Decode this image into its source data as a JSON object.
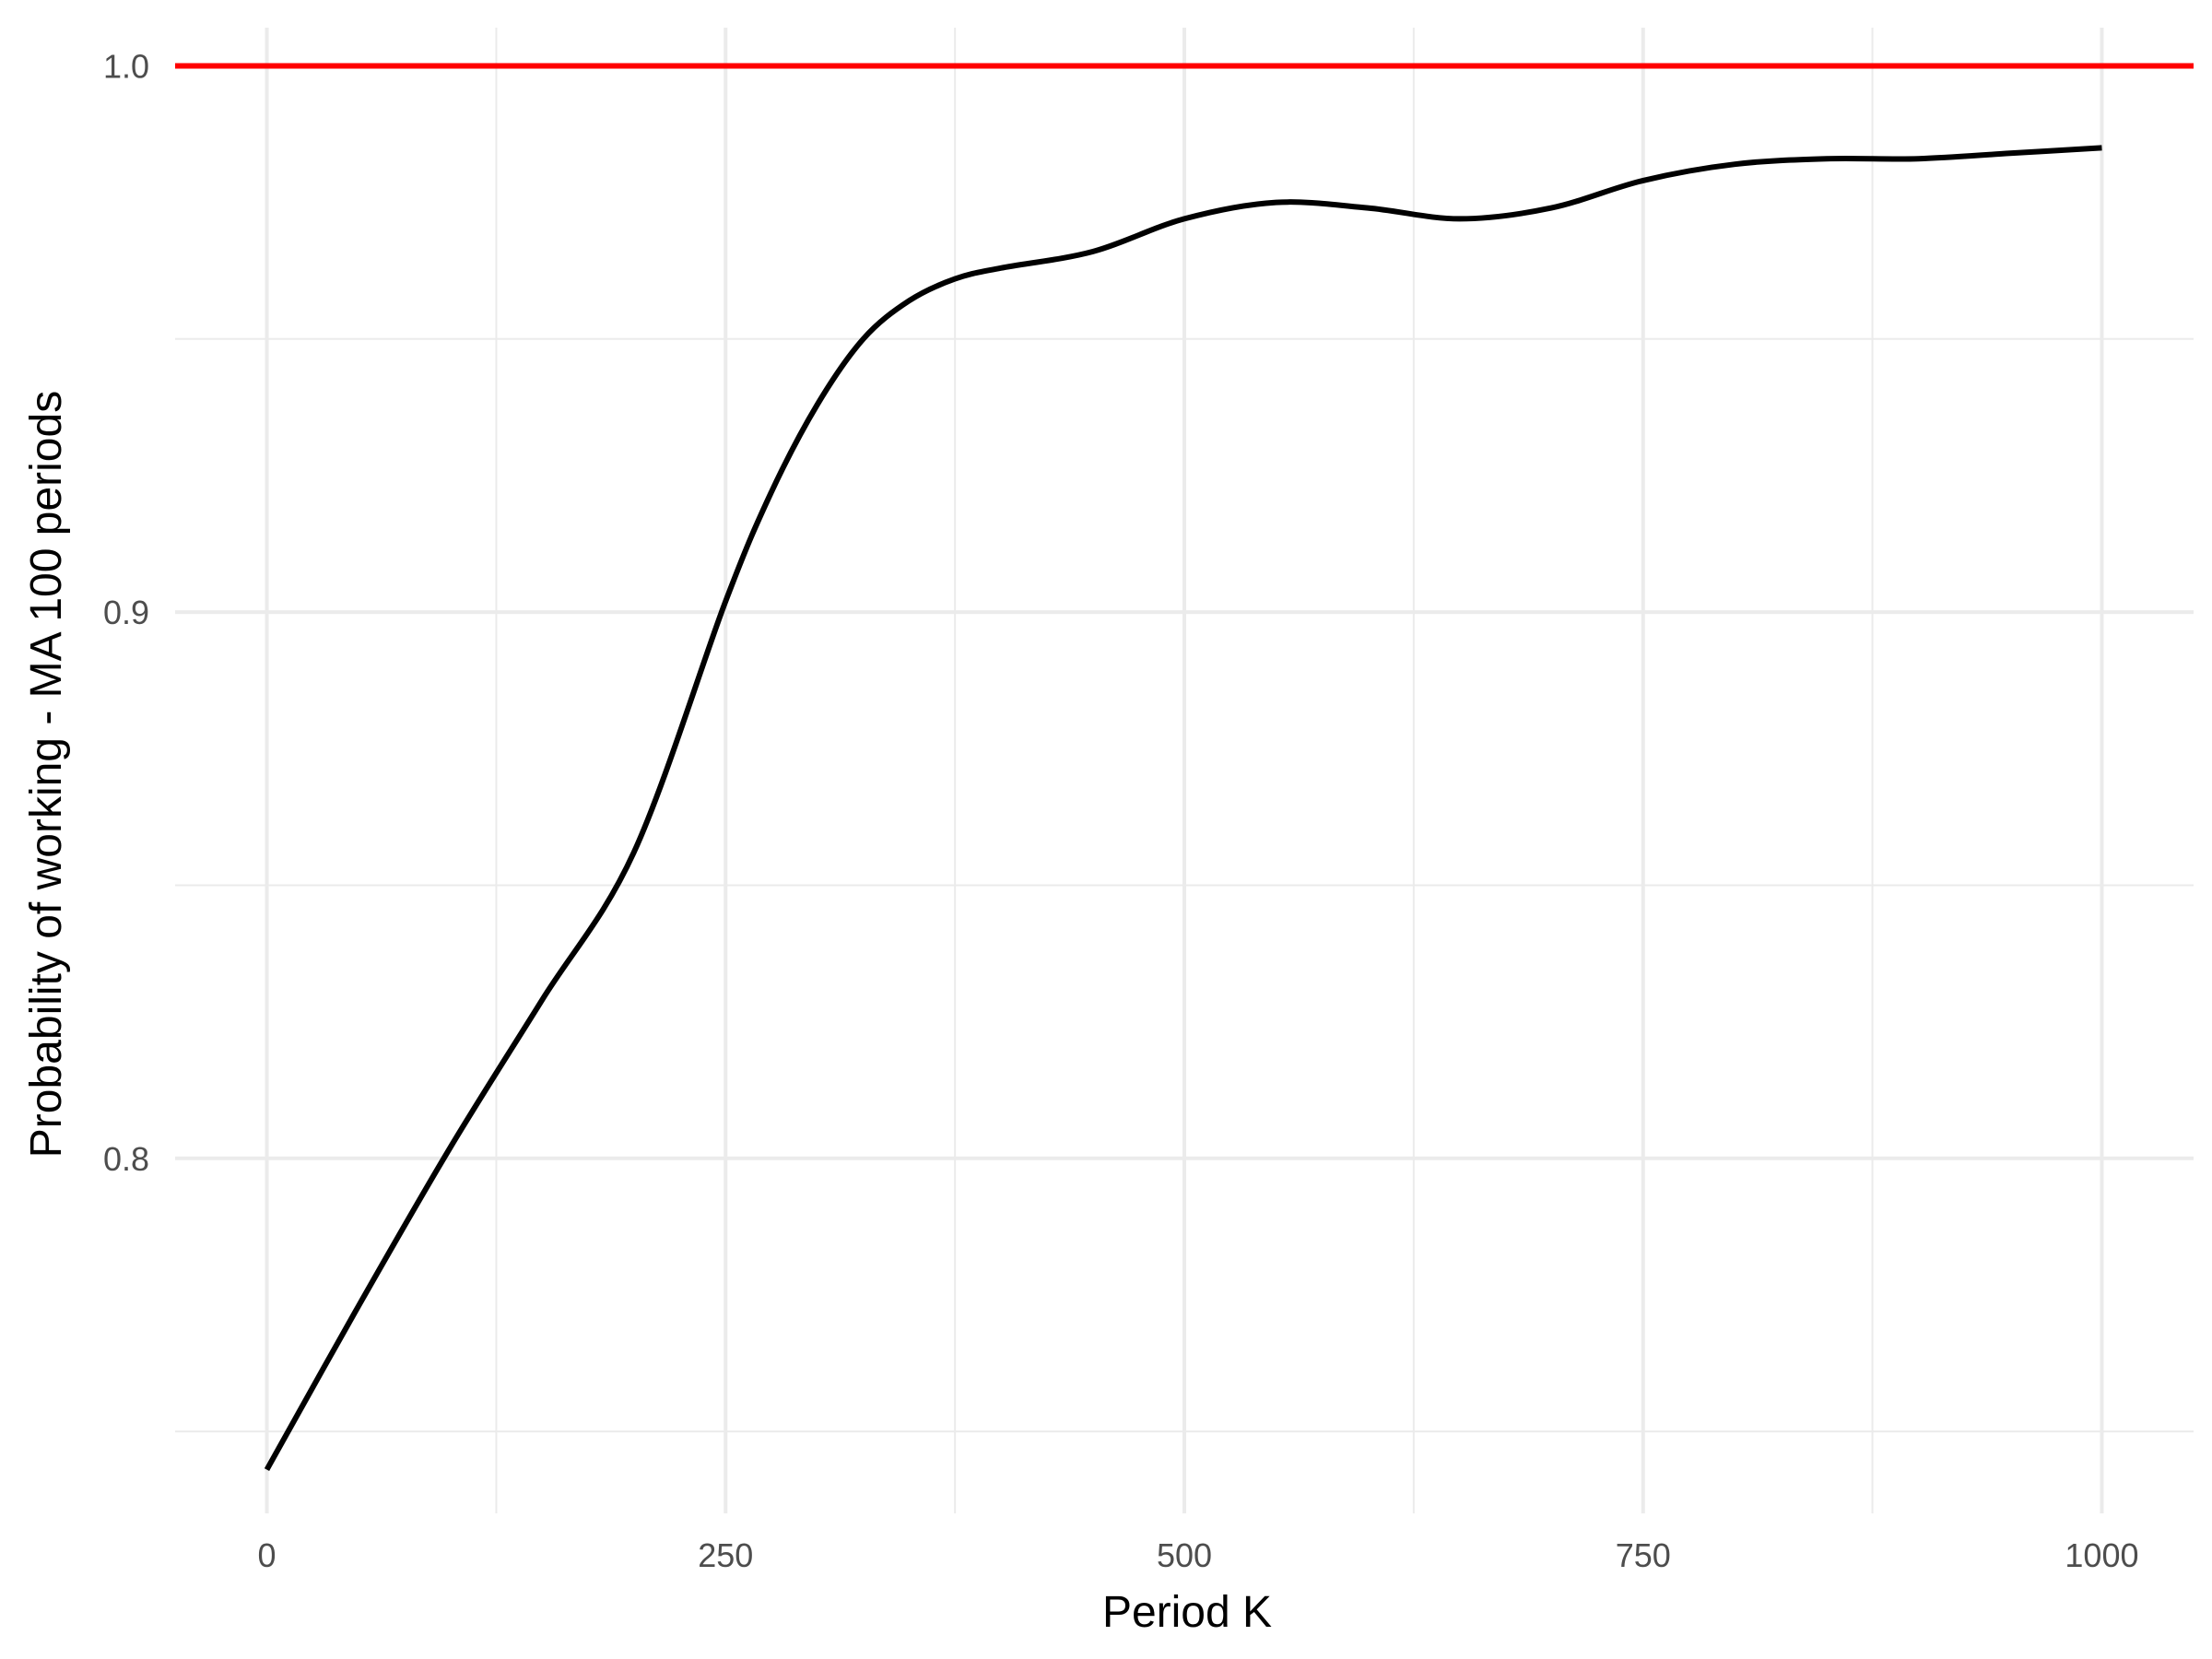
{
  "chart_data": {
    "type": "line",
    "title": "",
    "xlabel": "Period K",
    "ylabel": "Probability of working - MA 100 periods",
    "xlim": [
      -50,
      1050
    ],
    "ylim": [
      0.735,
      1.007
    ],
    "x_ticks": [
      0,
      250,
      500,
      750,
      1000
    ],
    "x_tick_labels": [
      "0",
      "250",
      "500",
      "750",
      "1000"
    ],
    "y_ticks": [
      0.8,
      0.9,
      1.0
    ],
    "y_tick_labels": [
      "0.8",
      "0.9",
      "1.0"
    ],
    "grid": true,
    "legend": "none",
    "series": [
      {
        "color": "#000000",
        "x": [
          0,
          50,
          100,
          150,
          200,
          250,
          275,
          300,
          325,
          350,
          375,
          400,
          450,
          500,
          550,
          600,
          650,
          700,
          750,
          800,
          850,
          900,
          950,
          1000
        ],
        "y": [
          0.743,
          0.773,
          0.802,
          0.829,
          0.856,
          0.902,
          0.922,
          0.938,
          0.95,
          0.957,
          0.961,
          0.963,
          0.966,
          0.972,
          0.975,
          0.974,
          0.972,
          0.974,
          0.979,
          0.982,
          0.983,
          0.983,
          0.984,
          0.985
        ]
      }
    ],
    "reference_line": {
      "y": 1.0,
      "color": "#ff0000"
    }
  }
}
